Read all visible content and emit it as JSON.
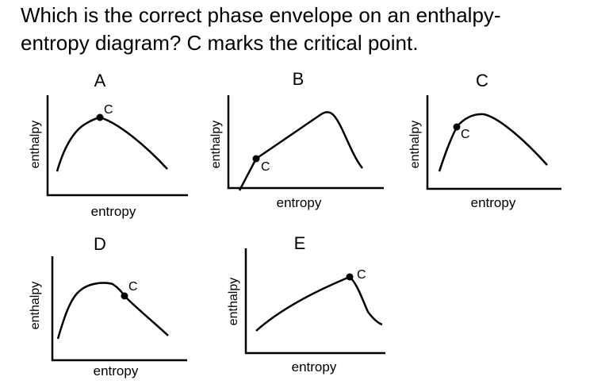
{
  "question": {
    "line1": "Which is the correct phase envelope on an enthalpy-",
    "line2": "entropy diagram? C marks the critical point."
  },
  "axis_labels": {
    "x": "entropy",
    "y": "enthalpy"
  },
  "critical_point_label": "C",
  "options": [
    {
      "letter": "A"
    },
    {
      "letter": "B"
    },
    {
      "letter": "C"
    },
    {
      "letter": "D"
    },
    {
      "letter": "E"
    }
  ],
  "colors": {
    "ink": "#000000",
    "background": "#ffffff"
  }
}
